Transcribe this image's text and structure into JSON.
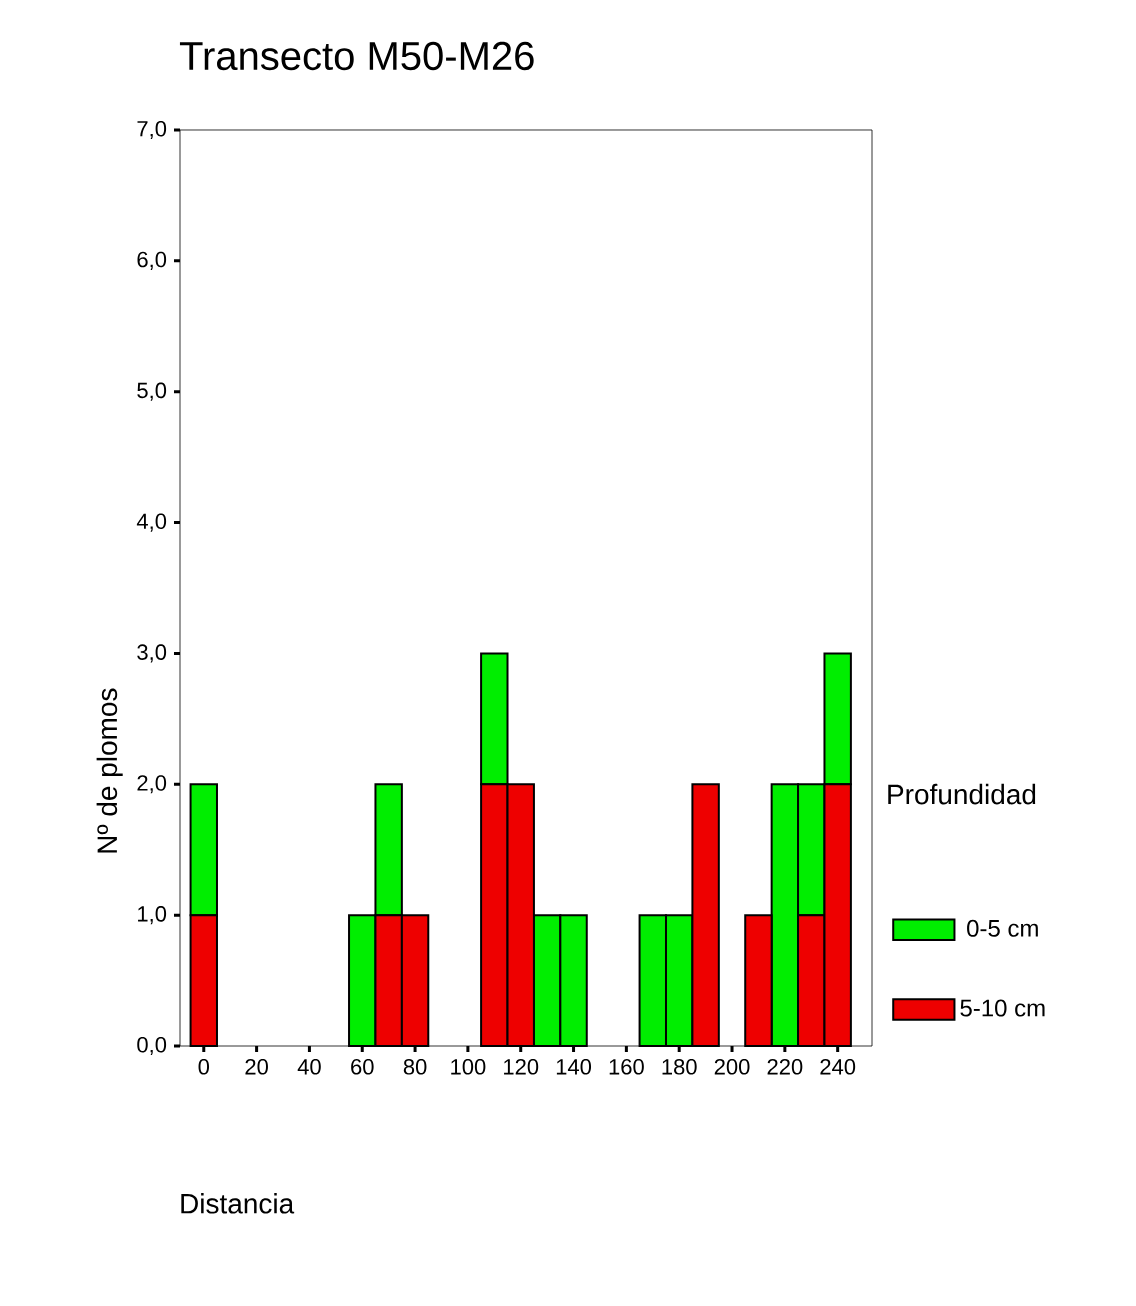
{
  "chart_data": {
    "type": "bar",
    "title": "Transecto M50-M26",
    "xlabel": "Distancia",
    "ylabel": "Nº de plomos",
    "legend_title": "Profundidad",
    "stacked": true,
    "legend": "right",
    "x": [
      0,
      10,
      20,
      30,
      40,
      50,
      60,
      70,
      80,
      90,
      100,
      110,
      120,
      130,
      140,
      150,
      160,
      170,
      180,
      190,
      200,
      210,
      220,
      230,
      240
    ],
    "series": [
      {
        "name": "5-10 cm",
        "color": "#ee0000",
        "values": [
          1,
          0,
          0,
          0,
          0,
          0,
          0,
          1,
          1,
          0,
          0,
          2,
          2,
          0,
          0,
          0,
          0,
          0,
          0,
          2,
          0,
          1,
          0,
          1,
          2
        ]
      },
      {
        "name": "0-5 cm",
        "color": "#00ee00",
        "values": [
          1,
          0,
          0,
          0,
          0,
          0,
          1,
          1,
          0,
          0,
          0,
          1,
          0,
          1,
          1,
          0,
          0,
          1,
          1,
          0,
          0,
          0,
          2,
          1,
          1
        ]
      }
    ],
    "xlim": [
      -9,
      253
    ],
    "ylim": [
      0,
      7
    ],
    "xticks": [
      0,
      20,
      40,
      60,
      80,
      100,
      120,
      140,
      160,
      180,
      200,
      220,
      240
    ],
    "yticks": [
      {
        "value": 0,
        "label": "0,0"
      },
      {
        "value": 1,
        "label": "1,0"
      },
      {
        "value": 2,
        "label": "2,0"
      },
      {
        "value": 3,
        "label": "3,0"
      },
      {
        "value": 4,
        "label": "4,0"
      },
      {
        "value": 5,
        "label": "5,0"
      },
      {
        "value": 6,
        "label": "6,0"
      },
      {
        "value": 7,
        "label": "7,0"
      }
    ],
    "grid": false
  }
}
